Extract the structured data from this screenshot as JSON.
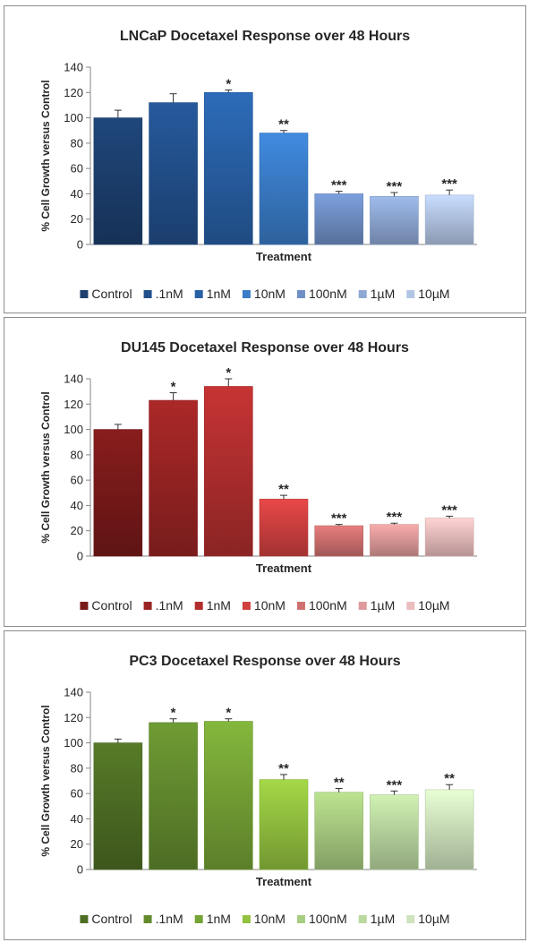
{
  "chart_data": [
    {
      "type": "bar",
      "title": "LNCaP Docetaxel Response over 48 Hours",
      "xlabel": "Treatment",
      "ylabel": "% Cell Growth versus Control",
      "ylim": [
        0,
        140
      ],
      "yticks": [
        0,
        20,
        40,
        60,
        80,
        100,
        120,
        140
      ],
      "legend_position": "bottom",
      "grid": false,
      "series": [
        {
          "name": "Control",
          "value": 100,
          "error": 6,
          "sig": "",
          "color": "#1c3f6e"
        },
        {
          "name": ".1nM",
          "value": 112,
          "error": 7,
          "sig": "",
          "color": "#22508c"
        },
        {
          "name": "1nM",
          "value": 120,
          "error": 2,
          "sig": "*",
          "color": "#2860a6"
        },
        {
          "name": "10nM",
          "value": 88,
          "error": 2,
          "sig": "**",
          "color": "#3a7cc8"
        },
        {
          "name": "100nM",
          "value": 40,
          "error": 2,
          "sig": "***",
          "color": "#6f8fc6"
        },
        {
          "name": "1µM",
          "value": 38,
          "error": 3,
          "sig": "***",
          "color": "#8ea8d4"
        },
        {
          "name": "10µM",
          "value": 39,
          "error": 4,
          "sig": "***",
          "color": "#b3c5e4"
        }
      ]
    },
    {
      "type": "bar",
      "title": "DU145 Docetaxel Response over 48 Hours",
      "xlabel": "Treatment",
      "ylabel": "% Cell Growth versus Control",
      "ylim": [
        0,
        140
      ],
      "yticks": [
        0,
        20,
        40,
        60,
        80,
        100,
        120,
        140
      ],
      "legend_position": "bottom",
      "grid": false,
      "series": [
        {
          "name": "Control",
          "value": 100,
          "error": 4,
          "sig": "",
          "color": "#7a1a1a"
        },
        {
          "name": ".1nM",
          "value": 123,
          "error": 6,
          "sig": "*",
          "color": "#9a2424"
        },
        {
          "name": "1nM",
          "value": 134,
          "error": 6,
          "sig": "*",
          "color": "#b22e2e"
        },
        {
          "name": "10nM",
          "value": 45,
          "error": 3,
          "sig": "**",
          "color": "#d04040"
        },
        {
          "name": "100nM",
          "value": 24,
          "error": 1,
          "sig": "***",
          "color": "#cf7070"
        },
        {
          "name": "1µM",
          "value": 25,
          "error": 1,
          "sig": "***",
          "color": "#de9a9a"
        },
        {
          "name": "10µM",
          "value": 30,
          "error": 1.5,
          "sig": "***",
          "color": "#ebbdbd"
        }
      ]
    },
    {
      "type": "bar",
      "title": "PC3 Docetaxel Response over 48 Hours",
      "xlabel": "Treatment",
      "ylabel": "% Cell Growth versus Control",
      "ylim": [
        0,
        140
      ],
      "yticks": [
        0,
        20,
        40,
        60,
        80,
        100,
        120,
        140
      ],
      "legend_position": "bottom",
      "grid": false,
      "series": [
        {
          "name": "Control",
          "value": 100,
          "error": 3,
          "sig": "",
          "color": "#4e6e24"
        },
        {
          "name": ".1nM",
          "value": 116,
          "error": 3,
          "sig": "*",
          "color": "#638b2e"
        },
        {
          "name": "1nM",
          "value": 117,
          "error": 2,
          "sig": "*",
          "color": "#76a336"
        },
        {
          "name": "10nM",
          "value": 71,
          "error": 4,
          "sig": "**",
          "color": "#92c23f"
        },
        {
          "name": "100nM",
          "value": 61,
          "error": 3,
          "sig": "**",
          "color": "#a8cc80"
        },
        {
          "name": "1µM",
          "value": 59,
          "error": 3,
          "sig": "***",
          "color": "#bad8a0"
        },
        {
          "name": "10µM",
          "value": 63,
          "error": 4,
          "sig": "**",
          "color": "#cfe3bd"
        }
      ]
    }
  ]
}
